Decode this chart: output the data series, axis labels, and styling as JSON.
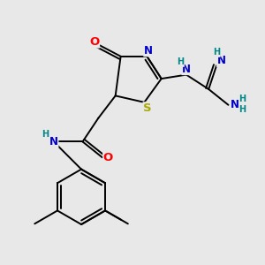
{
  "bg_color": "#e8e8e8",
  "bond_color": "#000000",
  "atom_colors": {
    "O": "#ff0000",
    "N": "#0000cc",
    "S": "#aaaa00",
    "H": "#008888",
    "C": "#000000"
  },
  "figsize": [
    3.0,
    3.0
  ],
  "dpi": 100,
  "lw": 1.4,
  "fs": 8.5
}
